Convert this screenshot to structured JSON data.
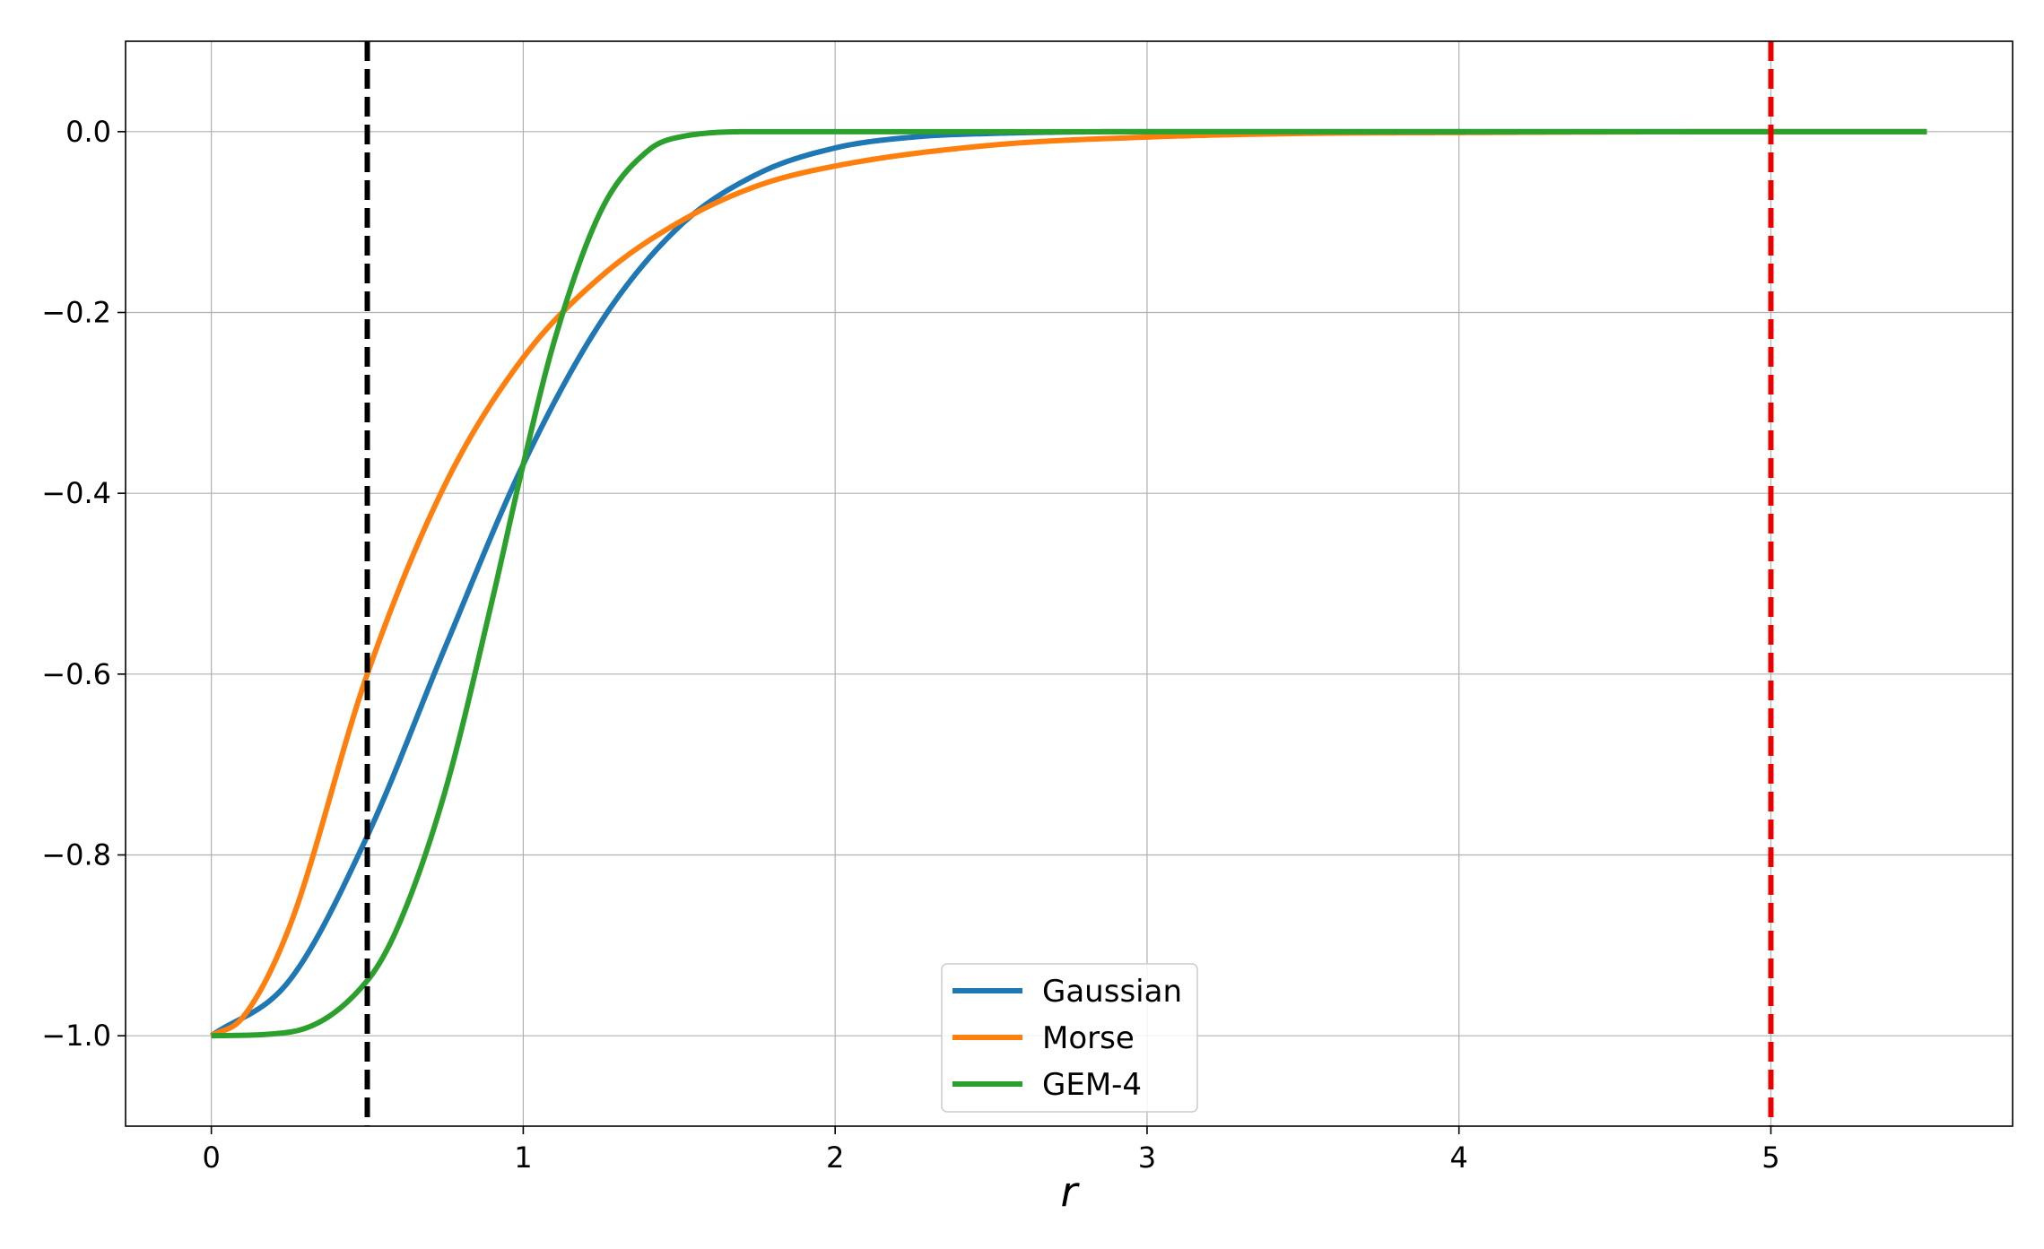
{
  "chart_data": {
    "type": "line",
    "title": "",
    "xlabel": "r",
    "ylabel": "",
    "xlim": [
      -0.275,
      5.775
    ],
    "ylim": [
      -1.1,
      0.1
    ],
    "xticks": [
      0,
      1,
      2,
      3,
      4,
      5
    ],
    "yticks": [
      -1.0,
      -0.8,
      -0.6,
      -0.4,
      -0.2,
      0.0
    ],
    "xtick_labels": [
      "0",
      "1",
      "2",
      "3",
      "4",
      "5"
    ],
    "ytick_labels": [
      "−1.0",
      "−0.8",
      "−0.6",
      "−0.4",
      "−0.2",
      "0.0"
    ],
    "grid": true,
    "legend_position": "lower center",
    "x_domain": [
      0,
      5.5
    ],
    "series": [
      {
        "name": "Gaussian",
        "color": "#1f77b4",
        "x": [
          0,
          0.25,
          0.5,
          0.75,
          1.0,
          1.25,
          1.5,
          1.75,
          2.0,
          2.25,
          2.5,
          3.0,
          3.5,
          4.0,
          5.0,
          5.5
        ],
        "y": [
          -1.0,
          -0.939,
          -0.779,
          -0.57,
          -0.368,
          -0.21,
          -0.105,
          -0.047,
          -0.018,
          -0.006,
          -0.002,
          0.0,
          0.0,
          0.0,
          0.0,
          0.0
        ]
      },
      {
        "name": "Morse",
        "color": "#ff7f0e",
        "x": [
          0,
          0.1,
          0.25,
          0.5,
          0.75,
          1.0,
          1.25,
          1.5,
          1.75,
          2.0,
          2.5,
          3.0,
          3.5,
          4.0,
          5.0,
          5.5
        ],
        "y": [
          -1.0,
          -0.98,
          -0.88,
          -0.6,
          -0.39,
          -0.25,
          -0.16,
          -0.1,
          -0.06,
          -0.038,
          -0.015,
          -0.006,
          -0.002,
          -0.001,
          0.0,
          0.0
        ]
      },
      {
        "name": "GEM-4",
        "color": "#2ca02c",
        "x": [
          0,
          0.25,
          0.5,
          0.6,
          0.75,
          0.9,
          1.0,
          1.1,
          1.25,
          1.4,
          1.5,
          1.75,
          2.0,
          3.0,
          5.0,
          5.5
        ],
        "y": [
          -1.0,
          -0.996,
          -0.939,
          -0.878,
          -0.729,
          -0.519,
          -0.368,
          -0.231,
          -0.087,
          -0.021,
          -0.006,
          0.0,
          0.0,
          0.0,
          0.0,
          0.0
        ]
      }
    ],
    "vlines": [
      {
        "x": 0.5,
        "color": "#000000",
        "style": "dashed"
      },
      {
        "x": 5.0,
        "color": "#ee0000",
        "style": "dashed"
      }
    ]
  }
}
